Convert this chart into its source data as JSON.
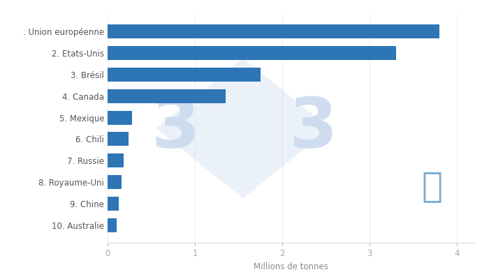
{
  "categories": [
    "10. Australie",
    "9. Chine",
    "8. Royaume-Uni",
    "7. Russie",
    "6. Chili",
    "5. Mexique",
    "4. Canada",
    "3. Brésil",
    "2. Etats-Unis",
    ". Union européenne"
  ],
  "values": [
    0.1,
    0.13,
    0.16,
    0.18,
    0.24,
    0.28,
    1.35,
    1.75,
    3.3,
    3.8
  ],
  "bar_color": "#2E75B6",
  "background_color": "#FFFFFF",
  "xlabel": "Millions de tonnes",
  "xlim": [
    0,
    4.2
  ],
  "xticks": [
    0,
    1,
    2,
    3,
    4
  ],
  "figure_width": 7.0,
  "figure_height": 4.0,
  "dpi": 100,
  "watermark_color": "#C8D8EE",
  "watermark_fontsize": 72,
  "ship_color": "#4A90C4"
}
